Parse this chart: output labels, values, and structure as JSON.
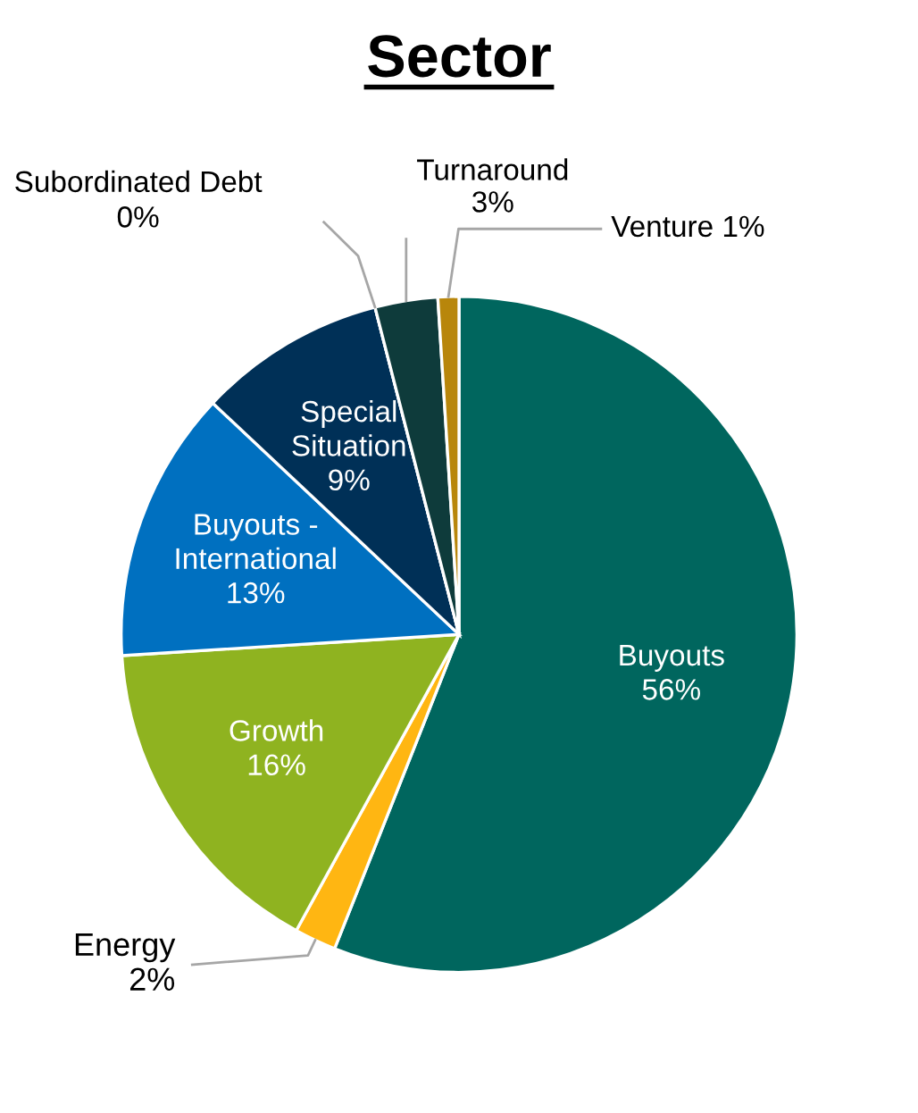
{
  "chart_data": {
    "type": "pie",
    "title": "Sector",
    "categories": [
      "Buyouts",
      "Energy",
      "Growth",
      "Buyouts -\nInternational",
      "Special\nSituation",
      "Subordinated Debt",
      "Turnaround",
      "Venture"
    ],
    "values": [
      56,
      2,
      16,
      13,
      9,
      0,
      3,
      1
    ],
    "value_labels": [
      "56%",
      "2%",
      "16%",
      "13%",
      "9%",
      "0%",
      "3%",
      "1%"
    ],
    "colors": [
      "#00665e",
      "#ffb612",
      "#8fb320",
      "#0070c0",
      "#003057",
      "#5f9ea0",
      "#0e3b3b",
      "#b8860b"
    ],
    "legend": false
  }
}
